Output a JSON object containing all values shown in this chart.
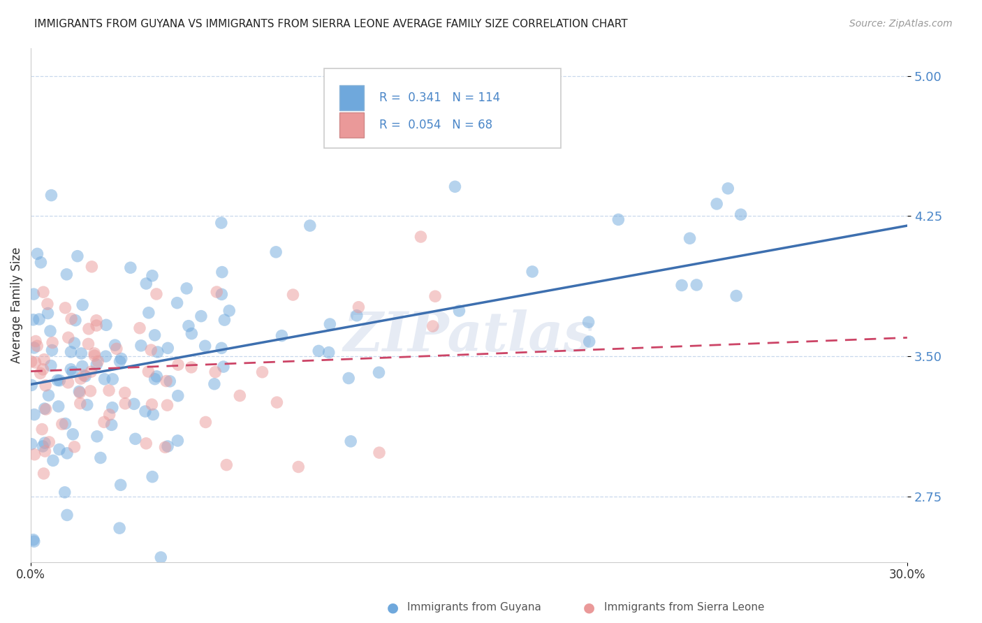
{
  "title": "IMMIGRANTS FROM GUYANA VS IMMIGRANTS FROM SIERRA LEONE AVERAGE FAMILY SIZE CORRELATION CHART",
  "source": "Source: ZipAtlas.com",
  "ylabel": "Average Family Size",
  "yticks": [
    2.75,
    3.5,
    4.25,
    5.0
  ],
  "xlim": [
    0.0,
    30.0
  ],
  "ylim": [
    2.4,
    5.15
  ],
  "guyana_R": 0.341,
  "guyana_N": 114,
  "sierra_R": 0.054,
  "sierra_N": 68,
  "guyana_color": "#a4c2f4",
  "guyana_color_fill": "#6fa8dc",
  "sierra_color": "#ea9999",
  "sierra_color_fill": "#e06c88",
  "guyana_line_color": "#3d6faf",
  "sierra_line_color": "#cc4466",
  "background_color": "#ffffff",
  "watermark": "ZIPatlas",
  "title_fontsize": 11,
  "source_fontsize": 10,
  "legend_fontsize": 12,
  "grid_color": "#c8d8ec",
  "ytick_color": "#4a86c8"
}
